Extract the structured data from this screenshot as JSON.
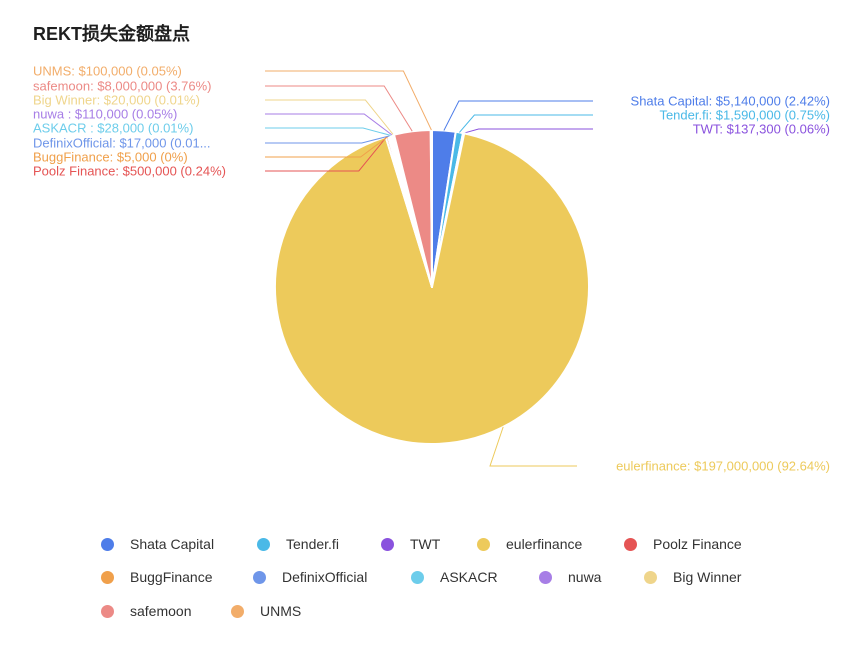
{
  "title": "REKT损失金额盘点",
  "chart_data": {
    "type": "pie",
    "series": [
      {
        "name": "Shata Capital",
        "label": "Shata Capital: $5,140,000 (2.42%)",
        "value": 5140000,
        "color": "#4e7de9"
      },
      {
        "name": "Tender.fi",
        "label": "Tender.fi: $1,590,000 (0.75%)",
        "value": 1590000,
        "color": "#4ab9e7"
      },
      {
        "name": "TWT",
        "label": "TWT: $137,300 (0.06%)",
        "value": 137300,
        "color": "#8a52de"
      },
      {
        "name": "eulerfinance",
        "label": "eulerfinance: $197,000,000 (92.64%)",
        "value": 197000000,
        "color": "#edca5b"
      },
      {
        "name": "Poolz Finance",
        "label": "Poolz Finance: $500,000 (0.24%)",
        "value": 500000,
        "color": "#e55454"
      },
      {
        "name": "BuggFinance",
        "label": "BuggFinance: $5,000 (0%)",
        "value": 5000,
        "color": "#f0a04b"
      },
      {
        "name": "DefinixOfficial",
        "label": "DefinixOfficial: $17,000 (0.01...",
        "value": 17000,
        "color": "#6f96e9"
      },
      {
        "name": "ASKACR",
        "label": "ASKACR : $28,000 (0.01%)",
        "value": 28000,
        "color": "#6dcdeb"
      },
      {
        "name": "nuwa",
        "label": "nuwa : $110,000 (0.05%)",
        "value": 110000,
        "color": "#a77ee6"
      },
      {
        "name": "Big Winner",
        "label": "Big Winner: $20,000 (0.01%)",
        "value": 20000,
        "color": "#efd58b"
      },
      {
        "name": "safemoon",
        "label": "safemoon: $8,000,000 (3.76%)",
        "value": 8000000,
        "color": "#ec8a86"
      },
      {
        "name": "UNMS",
        "label": "UNMS: $100,000 (0.05%)",
        "value": 100000,
        "color": "#f2ad6a"
      }
    ],
    "legend_position": "bottom"
  }
}
